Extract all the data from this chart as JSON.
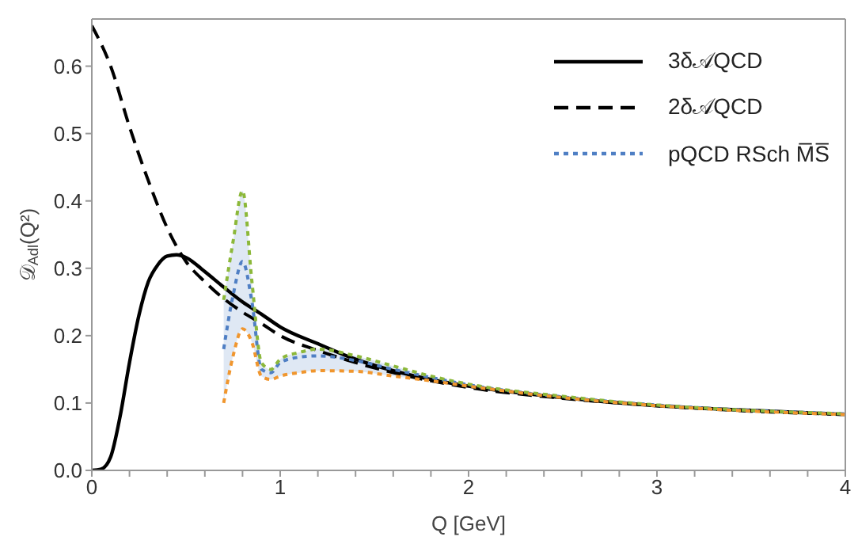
{
  "chart_data": {
    "type": "line",
    "xlabel": "Q [GeV]",
    "ylabel": "𝒟$_{Adl}$(Q²)",
    "xlim": [
      0,
      4
    ],
    "ylim": [
      0,
      0.67
    ],
    "xticks": [
      0,
      {
        "value": 0.2,
        "label": null
      },
      {
        "value": 0.4,
        "label": null
      },
      {
        "value": 0.6,
        "label": null
      },
      {
        "value": 0.8,
        "label": null
      },
      1,
      {
        "value": 1.2,
        "label": null
      },
      {
        "value": 1.4,
        "label": null
      },
      {
        "value": 1.6,
        "label": null
      },
      {
        "value": 1.8,
        "label": null
      },
      2,
      {
        "value": 2.2,
        "label": null
      },
      {
        "value": 2.4,
        "label": null
      },
      {
        "value": 2.6,
        "label": null
      },
      {
        "value": 2.8,
        "label": null
      },
      3,
      {
        "value": 3.2,
        "label": null
      },
      {
        "value": 3.4,
        "label": null
      },
      {
        "value": 3.6,
        "label": null
      },
      {
        "value": 3.8,
        "label": null
      },
      4
    ],
    "yticks": [
      {
        "value": 0,
        "label": "0.0"
      },
      {
        "value": 0.1,
        "label": "0.1"
      },
      {
        "value": 0.2,
        "label": "0.2"
      },
      {
        "value": 0.3,
        "label": "0.3"
      },
      {
        "value": 0.4,
        "label": "0.4"
      },
      {
        "value": 0.5,
        "label": "0.5"
      },
      {
        "value": 0.6,
        "label": "0.6"
      }
    ],
    "grid": false,
    "legend": "top right",
    "marker": "none",
    "series": [
      {
        "name": "3δ𝒜QCD",
        "color": "#000000",
        "line_style": "solid",
        "x": [
          0,
          0.05,
          0.1,
          0.15,
          0.2,
          0.25,
          0.3,
          0.35,
          0.4,
          0.45,
          0.5,
          0.6,
          0.7,
          0.8,
          0.9,
          1.0,
          1.2,
          1.4,
          1.6,
          1.8,
          2.0,
          2.5,
          3.0,
          3.5,
          4.0
        ],
        "values": [
          0,
          0.002,
          0.02,
          0.08,
          0.16,
          0.23,
          0.28,
          0.305,
          0.318,
          0.32,
          0.316,
          0.295,
          0.272,
          0.25,
          0.232,
          0.213,
          0.188,
          0.165,
          0.148,
          0.135,
          0.125,
          0.108,
          0.096,
          0.089,
          0.083
        ]
      },
      {
        "name": "2δ𝒜QCD",
        "color": "#000000",
        "line_style": "dashed",
        "x": [
          0,
          0.1,
          0.2,
          0.3,
          0.4,
          0.5,
          0.6,
          0.7,
          0.8,
          0.9,
          1.0,
          1.2,
          1.4,
          1.6,
          1.8,
          2.0,
          2.5,
          3.0,
          3.5,
          4.0
        ],
        "values": [
          0.66,
          0.6,
          0.51,
          0.43,
          0.36,
          0.31,
          0.28,
          0.255,
          0.235,
          0.218,
          0.2,
          0.178,
          0.16,
          0.145,
          0.133,
          0.123,
          0.107,
          0.096,
          0.088,
          0.083
        ]
      },
      {
        "name": "pQCD RSch M̅S̅",
        "color": "#4f7fc4",
        "line_style": "dotted",
        "x": [
          0.7,
          0.75,
          0.8,
          0.85,
          0.9,
          0.95,
          1.0,
          1.1,
          1.2,
          1.4,
          1.6,
          1.8,
          2,
          2.5,
          3,
          3.5,
          4
        ],
        "values": [
          0.18,
          0.26,
          0.31,
          0.25,
          0.15,
          0.145,
          0.16,
          0.168,
          0.17,
          0.163,
          0.15,
          0.138,
          0.127,
          0.109,
          0.097,
          0.089,
          0.084
        ],
        "lower": [
          0.1,
          0.17,
          0.21,
          0.19,
          0.14,
          0.135,
          0.14,
          0.145,
          0.148,
          0.147,
          0.14,
          0.133,
          0.125,
          0.108,
          0.096,
          0.088,
          0.083
        ],
        "upper": [
          0.253,
          0.34,
          0.415,
          0.28,
          0.16,
          0.15,
          0.165,
          0.175,
          0.18,
          0.17,
          0.155,
          0.14,
          0.128,
          0.11,
          0.097,
          0.089,
          0.084
        ]
      },
      {
        "color": "#8cb83a",
        "line_style": "dotted",
        "x": [
          0.7,
          0.75,
          0.8,
          0.85,
          0.9,
          0.95,
          1.0,
          1.1,
          1.2,
          1.4,
          1.6,
          1.8,
          2,
          2.5,
          3,
          3.5,
          4
        ],
        "values": [
          0.253,
          0.34,
          0.415,
          0.28,
          0.16,
          0.15,
          0.165,
          0.175,
          0.18,
          0.17,
          0.155,
          0.14,
          0.128,
          0.11,
          0.097,
          0.089,
          0.084
        ]
      },
      {
        "color": "#f0962e",
        "line_style": "dotted",
        "x": [
          0.7,
          0.75,
          0.8,
          0.85,
          0.9,
          0.95,
          1.0,
          1.1,
          1.2,
          1.4,
          1.6,
          1.8,
          2,
          2.5,
          3,
          3.5,
          4
        ],
        "values": [
          0.1,
          0.17,
          0.21,
          0.19,
          0.14,
          0.135,
          0.14,
          0.145,
          0.148,
          0.147,
          0.14,
          0.133,
          0.125,
          0.108,
          0.096,
          0.088,
          0.083
        ]
      }
    ]
  }
}
